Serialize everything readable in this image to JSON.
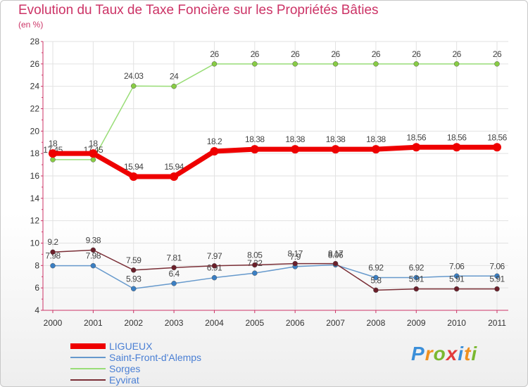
{
  "header": {
    "title": "Evolution du Taux de Taxe Foncière sur les Propriétés Bâties",
    "unit": "(en %)"
  },
  "logo": {
    "letters": [
      "P",
      "r",
      "o",
      "x",
      "i",
      "t",
      "i"
    ],
    "colors": [
      "#3b8fd9",
      "#f0901e",
      "#7ab830",
      "#e23b3b",
      "#3b8fd9",
      "#f0901e",
      "#7ab830"
    ]
  },
  "chart_data": {
    "type": "line",
    "title": "Evolution du Taux de Taxe Foncière sur les Propriétés Bâties",
    "ylabel": "(en %)",
    "xlabel": "",
    "ylim": [
      4,
      28
    ],
    "yticks": [
      4,
      6,
      8,
      10,
      12,
      14,
      16,
      18,
      20,
      22,
      24,
      26,
      28
    ],
    "grid": true,
    "categories": [
      "2000",
      "2001",
      "2002",
      "2003",
      "2004",
      "2005",
      "2006",
      "2007",
      "2008",
      "2009",
      "2010",
      "2011"
    ],
    "series": [
      {
        "name": "Sorges",
        "color": "#99dd77",
        "marker": "#88cc44",
        "width": 1.5,
        "values": [
          17.45,
          17.45,
          24.03,
          24,
          26,
          26,
          26,
          26,
          26,
          26,
          26,
          26
        ],
        "labels": [
          "17.45",
          "17.45",
          "24.03",
          "24",
          "26",
          "26",
          "26",
          "26",
          "26",
          "26",
          "26",
          "26"
        ]
      },
      {
        "name": "Saint-Front-d'Alemps",
        "color": "#6699cc",
        "marker": "#3a7fc4",
        "width": 1.5,
        "values": [
          7.98,
          7.98,
          5.93,
          6.4,
          6.91,
          7.32,
          7.9,
          8.06,
          6.92,
          6.92,
          7.06,
          7.06
        ],
        "labels": [
          "7.98",
          "7.98",
          "5.93",
          "6.4",
          "6.91",
          "7.32",
          "7.9",
          "8.06",
          "6.92",
          "6.92",
          "7.06",
          "7.06"
        ]
      },
      {
        "name": "Eyvirat",
        "color": "#7a2e36",
        "marker": "#6b1f2a",
        "width": 1.5,
        "values": [
          9.2,
          9.38,
          7.59,
          7.81,
          7.97,
          8.05,
          8.17,
          8.17,
          5.8,
          5.91,
          5.91,
          5.91
        ],
        "labels": [
          "9.2",
          "9.38",
          "7.59",
          "7.81",
          "7.97",
          "8.05",
          "8.17",
          "8.17",
          "5.8",
          "5.91",
          "5.91",
          "5.91"
        ]
      },
      {
        "name": "LIGUEUX",
        "color": "#ee0000",
        "marker": "#ee0000",
        "width": 7,
        "values": [
          18,
          18,
          15.94,
          15.94,
          18.2,
          18.38,
          18.38,
          18.38,
          18.38,
          18.56,
          18.56,
          18.56
        ],
        "labels": [
          "18",
          "18",
          "15.94",
          "15.94",
          "18.2",
          "18.38",
          "18.38",
          "18.38",
          "18.38",
          "18.56",
          "18.56",
          "18.56"
        ]
      }
    ],
    "legend": [
      "LIGUEUX",
      "Saint-Front-d'Alemps",
      "Sorges",
      "Eyvirat"
    ],
    "legend_position": "bottom-left"
  }
}
